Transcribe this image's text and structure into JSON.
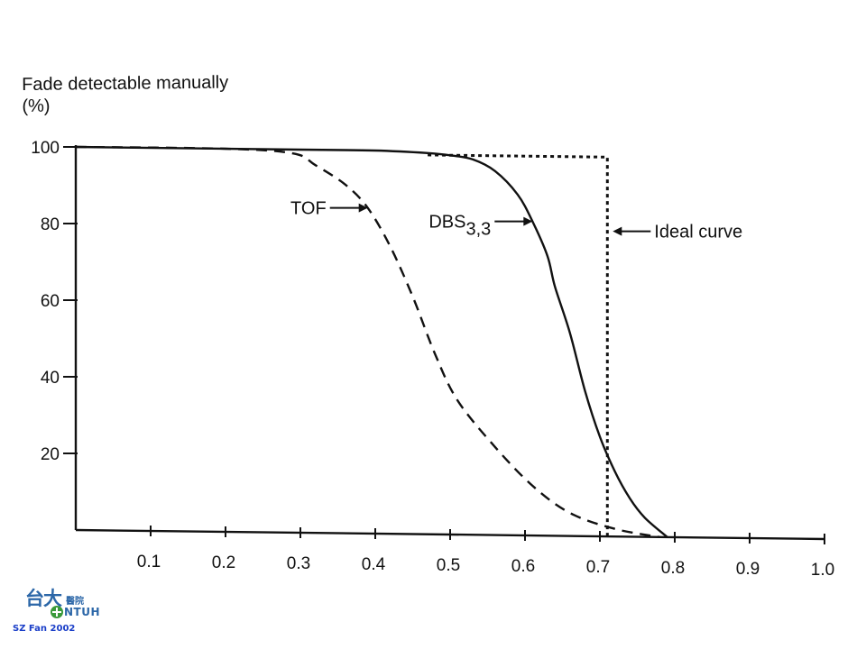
{
  "chart_data": {
    "type": "line",
    "title": "",
    "ylabel": [
      "Fade detectable manually",
      "(%)"
    ],
    "xlabel": "",
    "xlim": [
      0,
      1.0
    ],
    "ylim": [
      0,
      100
    ],
    "x_ticks": [
      0.1,
      0.2,
      0.3,
      0.4,
      0.5,
      0.6,
      0.7,
      0.8,
      0.9,
      1.0
    ],
    "x_tick_labels": [
      "0.1",
      "0.2",
      "0.3",
      "0.4",
      "0.5",
      "0.6",
      "0.7",
      "0.8",
      "0.9",
      "1.0"
    ],
    "y_ticks": [
      20,
      40,
      60,
      80,
      100
    ],
    "y_tick_labels": [
      "20",
      "40",
      "60",
      "80",
      "100"
    ],
    "series": [
      {
        "name": "TOF",
        "style": "dashed",
        "points": [
          [
            0.0,
            100
          ],
          [
            0.2,
            100
          ],
          [
            0.29,
            99
          ],
          [
            0.32,
            96
          ],
          [
            0.36,
            91
          ],
          [
            0.39,
            85
          ],
          [
            0.42,
            75
          ],
          [
            0.45,
            62
          ],
          [
            0.48,
            47
          ],
          [
            0.51,
            35
          ],
          [
            0.56,
            23
          ],
          [
            0.61,
            13
          ],
          [
            0.66,
            6
          ],
          [
            0.72,
            2
          ],
          [
            0.78,
            0
          ]
        ]
      },
      {
        "name": "DBS",
        "name_subscript": "3,3",
        "style": "solid",
        "points": [
          [
            0.0,
            100
          ],
          [
            0.3,
            100
          ],
          [
            0.4,
            100
          ],
          [
            0.47,
            99.5
          ],
          [
            0.5,
            99
          ],
          [
            0.53,
            98
          ],
          [
            0.56,
            95
          ],
          [
            0.59,
            89
          ],
          [
            0.61,
            82
          ],
          [
            0.63,
            73
          ],
          [
            0.64,
            65
          ],
          [
            0.66,
            53
          ],
          [
            0.68,
            38
          ],
          [
            0.7,
            26
          ],
          [
            0.72,
            17
          ],
          [
            0.74,
            10
          ],
          [
            0.76,
            5
          ],
          [
            0.79,
            0
          ]
        ]
      },
      {
        "name": "Ideal curve",
        "style": "dotted",
        "points": [
          [
            0.47,
            99
          ],
          [
            0.71,
            99
          ],
          [
            0.71,
            0
          ]
        ]
      }
    ],
    "annotations": [
      {
        "text": "TOF",
        "subscript": "",
        "series": "TOF",
        "arrow_to": [
          0.39,
          85
        ]
      },
      {
        "text": "DBS",
        "subscript": "3,3",
        "series": "DBS",
        "arrow_to": [
          0.61,
          82
        ]
      },
      {
        "text": "Ideal curve",
        "subscript": "",
        "series": "Ideal curve",
        "arrow_to": [
          0.71,
          82
        ]
      }
    ],
    "grid": false,
    "legend": "none"
  },
  "branding": {
    "logo_cn": "台大",
    "logo_cn_small": "醫院",
    "logo_en": "NTUH",
    "credit": "SZ Fan 2002"
  },
  "colors": {
    "line": "#111111",
    "brand_blue": "#2c67a8",
    "brand_green": "#3a9a3a",
    "credit_blue": "#1a3ec8"
  }
}
